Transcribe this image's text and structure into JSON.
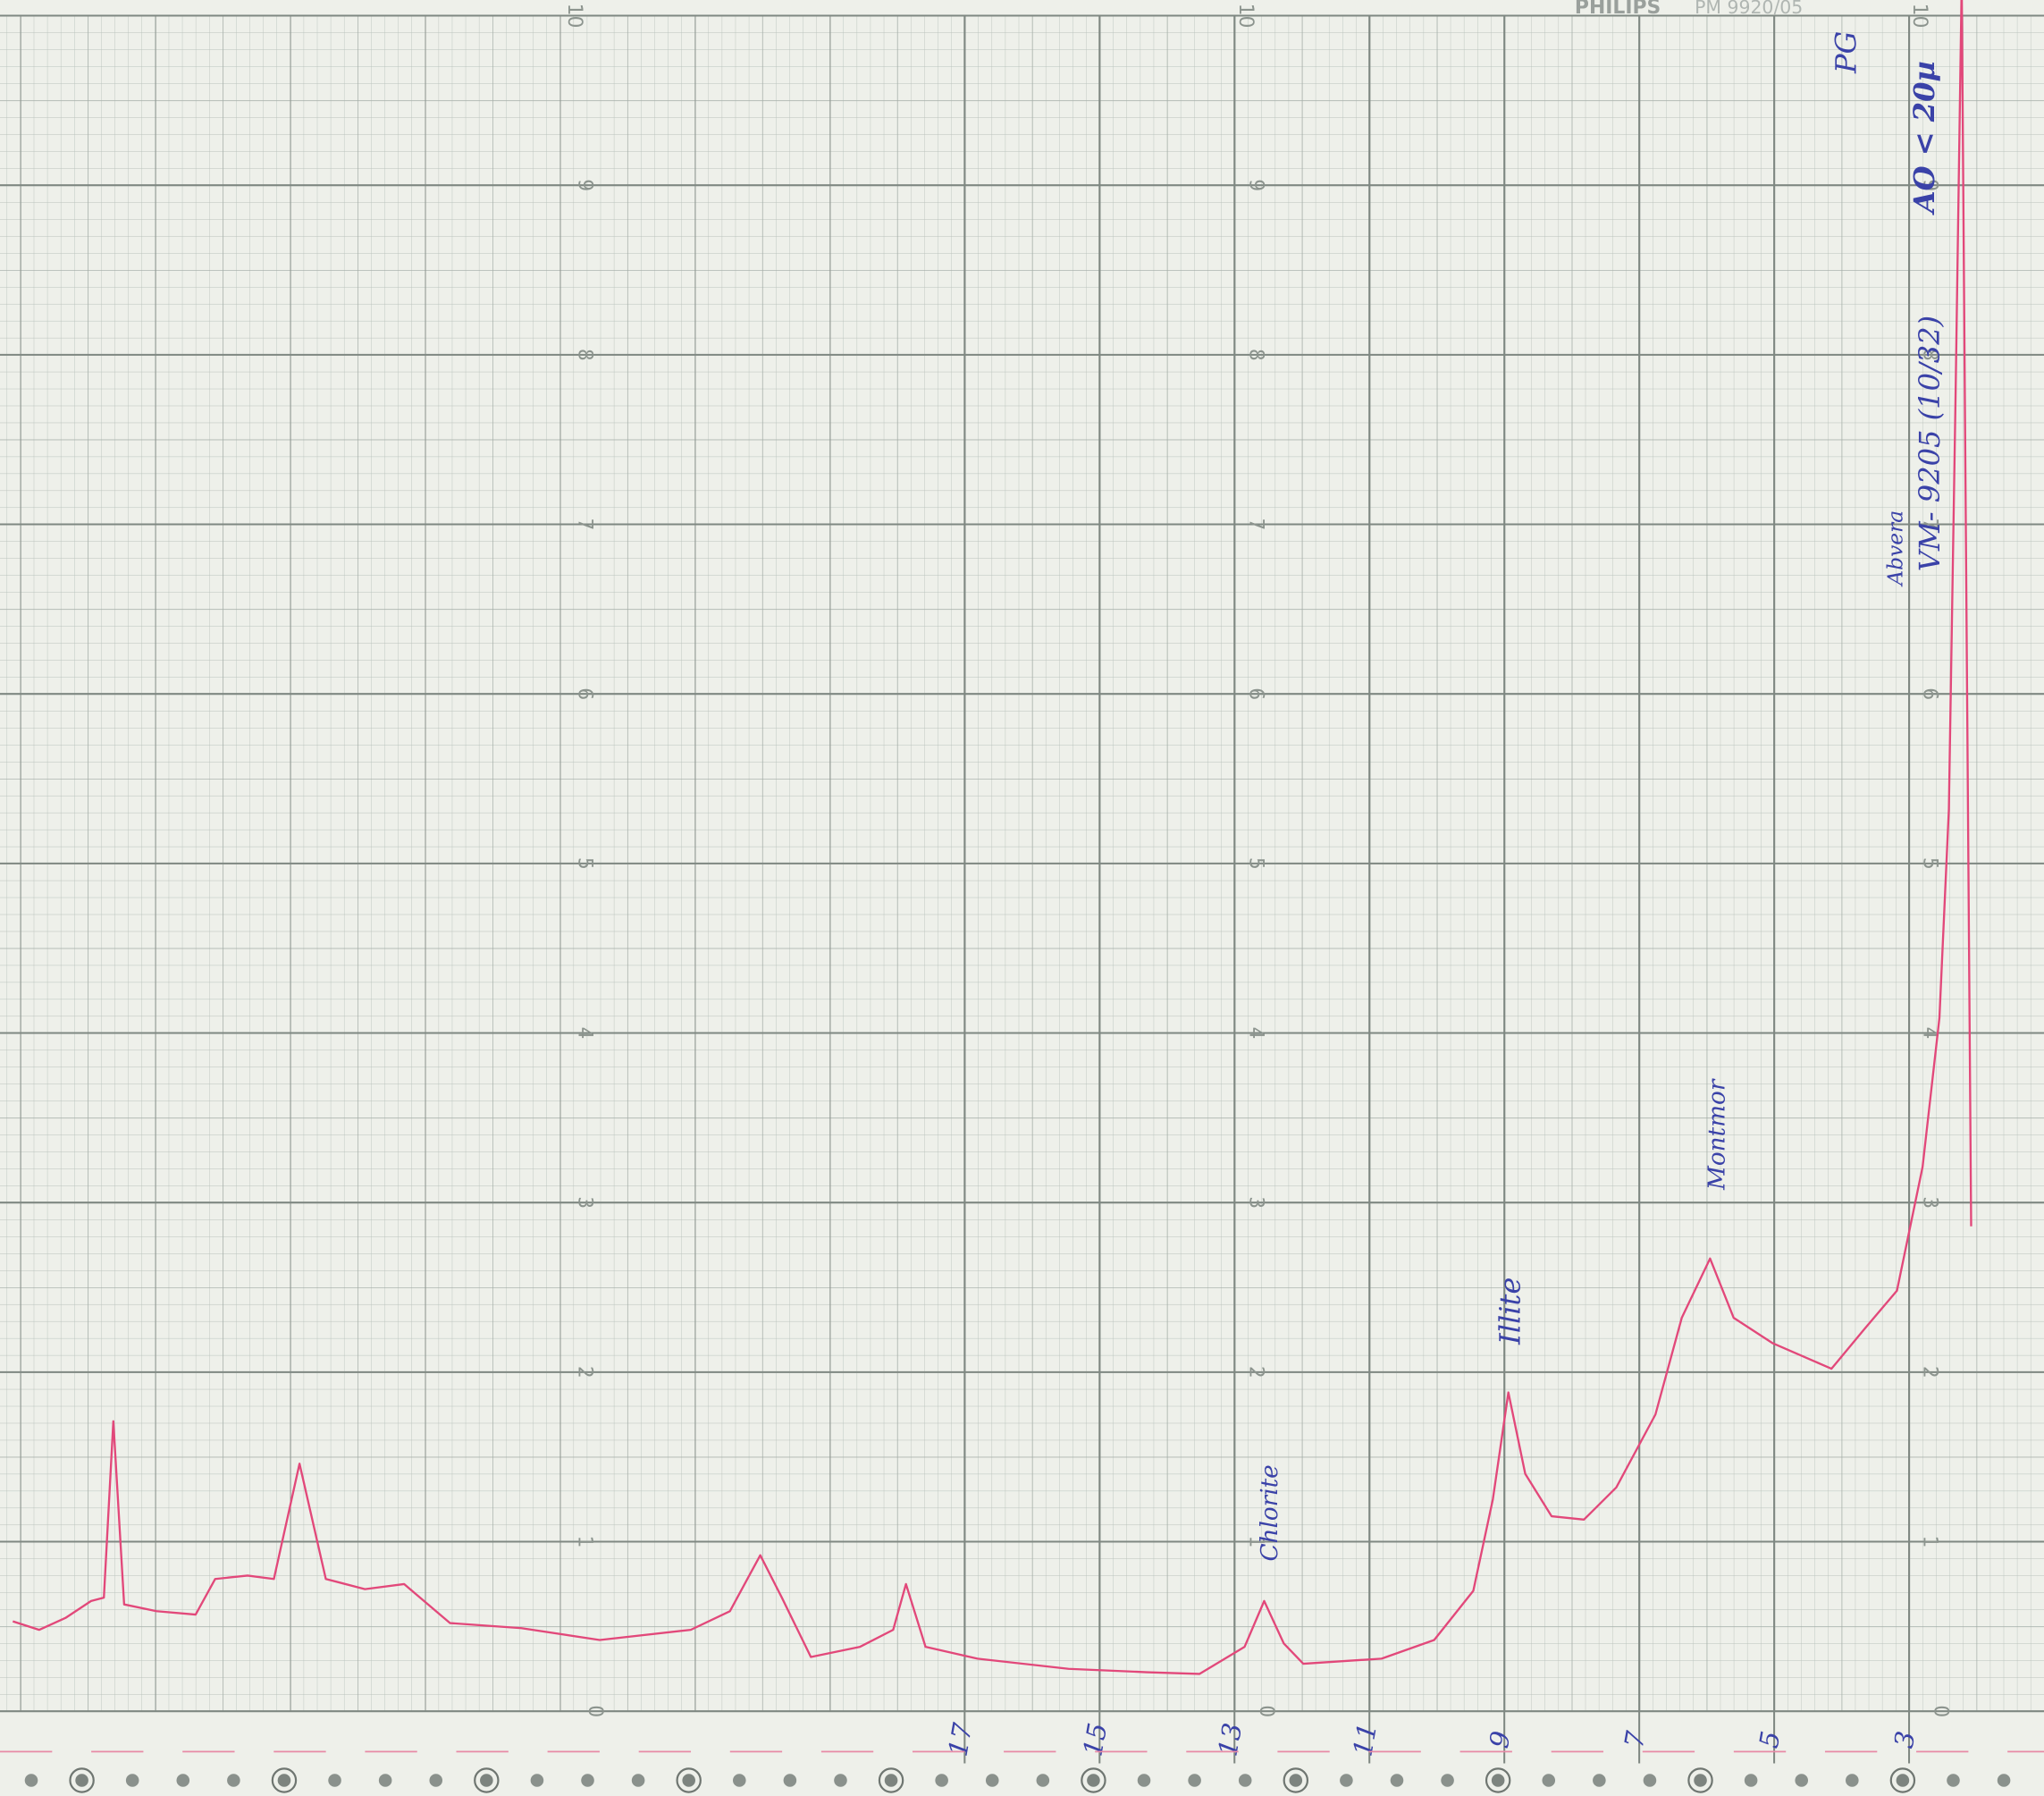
{
  "chart_data": {
    "type": "line",
    "header": {
      "brand": "PHILIPS",
      "model": "PM 9920/05"
    },
    "xlim": [
      31.3,
      1.0
    ],
    "ylim": [
      0,
      10
    ],
    "yticks": [
      0,
      1,
      2,
      3,
      4,
      5,
      6,
      7,
      8,
      9,
      10
    ],
    "xticks": [
      17,
      15,
      13,
      11,
      9,
      7,
      5,
      3
    ],
    "grid": true,
    "x": [
      31.11,
      30.72,
      30.33,
      29.95,
      29.76,
      29.62,
      29.46,
      28.98,
      28.4,
      28.11,
      27.63,
      27.24,
      26.86,
      26.47,
      25.89,
      25.31,
      24.63,
      23.57,
      22.41,
      21.06,
      20.48,
      20.03,
      19.71,
      19.28,
      18.55,
      18.06,
      17.87,
      17.58,
      16.81,
      15.46,
      14.3,
      13.52,
      12.85,
      12.56,
      12.27,
      11.98,
      10.82,
      10.04,
      9.46,
      9.17,
      8.94,
      8.69,
      8.3,
      7.82,
      7.34,
      6.76,
      6.37,
      5.95,
      5.6,
      5.02,
      4.15,
      3.67,
      3.18,
      2.8,
      2.55,
      2.41,
      2.31,
      2.22,
      2.08
    ],
    "series": [
      {
        "name": "trace",
        "color": "#e2487a",
        "values": [
          0.53,
          0.48,
          0.55,
          0.65,
          0.67,
          1.71,
          0.63,
          0.59,
          0.57,
          0.78,
          0.8,
          0.78,
          1.46,
          0.78,
          0.72,
          0.75,
          0.52,
          0.49,
          0.42,
          0.48,
          0.59,
          0.92,
          0.67,
          0.32,
          0.38,
          0.48,
          0.75,
          0.38,
          0.31,
          0.25,
          0.23,
          0.22,
          0.38,
          0.65,
          0.4,
          0.28,
          0.31,
          0.42,
          0.71,
          1.25,
          1.88,
          1.4,
          1.15,
          1.13,
          1.32,
          1.75,
          2.32,
          2.67,
          2.32,
          2.17,
          2.02,
          2.25,
          2.48,
          3.21,
          4.09,
          5.32,
          7.78,
          10.2,
          2.86
        ]
      }
    ],
    "annotations": [
      "Chlorite",
      "Illite",
      "Montmor",
      "Abvera",
      "VM- 9205 (10/32)",
      "AO < 20µ",
      "PG"
    ]
  }
}
